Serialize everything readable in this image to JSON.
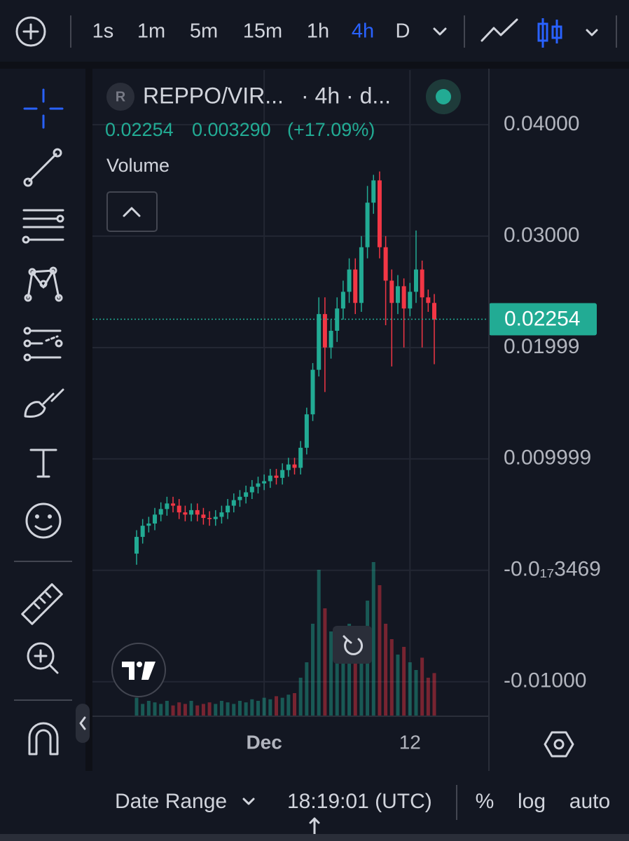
{
  "toolbar": {
    "intervals": [
      "1s",
      "1m",
      "5m",
      "15m",
      "1h",
      "4h",
      "D"
    ],
    "active_interval": "4h"
  },
  "legend": {
    "symbol_icon": "R",
    "symbol": "REPPO/VIR...",
    "interval": "· 4h · d...",
    "change": "0.003290",
    "change_pct": "(+17.09%)"
  },
  "chart_data": {
    "type": "candlestick",
    "categories": [
      null,
      null,
      null,
      null,
      null,
      null,
      null,
      null,
      null,
      null,
      null,
      null,
      null,
      null,
      null,
      null,
      null,
      null,
      null,
      null,
      null,
      "Dec",
      null,
      null,
      null,
      null,
      null,
      null,
      null,
      null,
      null,
      null,
      null,
      null,
      null,
      null,
      null,
      null,
      null,
      null,
      null,
      null,
      null,
      null,
      null,
      "12",
      null,
      null,
      null,
      null
    ],
    "open": [
      0.0015,
      0.003,
      0.004,
      0.0042,
      0.005,
      0.0055,
      0.006,
      0.0058,
      0.0052,
      0.005,
      0.0054,
      0.005,
      0.0047,
      0.0046,
      0.0048,
      0.0052,
      0.0058,
      0.0063,
      0.0066,
      0.007,
      0.0075,
      0.0078,
      0.008,
      0.0085,
      0.0083,
      0.009,
      0.0095,
      0.0092,
      0.011,
      0.014,
      0.018,
      0.023,
      0.02,
      0.0215,
      0.0235,
      0.025,
      0.027,
      0.024,
      0.029,
      0.033,
      0.035,
      0.029,
      0.026,
      0.024,
      0.0255,
      0.0235,
      0.025,
      0.027,
      0.0245,
      0.024
    ],
    "high": [
      0.0036,
      0.0046,
      0.0048,
      0.0056,
      0.0061,
      0.0066,
      0.0066,
      0.0064,
      0.0058,
      0.006,
      0.006,
      0.0056,
      0.0053,
      0.0054,
      0.0058,
      0.0064,
      0.0069,
      0.0072,
      0.0076,
      0.0081,
      0.0084,
      0.0086,
      0.0091,
      0.0091,
      0.0096,
      0.0101,
      0.0101,
      0.0116,
      0.0146,
      0.0186,
      0.0245,
      0.0245,
      0.0225,
      0.0245,
      0.026,
      0.028,
      0.028,
      0.03,
      0.0345,
      0.0355,
      0.0358,
      0.03,
      0.027,
      0.0265,
      0.0262,
      0.0258,
      0.0305,
      0.0278,
      0.0252,
      0.0248
    ],
    "low": [
      0.0005,
      0.0024,
      0.0034,
      0.0036,
      0.0044,
      0.0049,
      0.0052,
      0.0046,
      0.0044,
      0.0044,
      0.0044,
      0.0041,
      0.004,
      0.004,
      0.0042,
      0.0046,
      0.0052,
      0.0057,
      0.006,
      0.0064,
      0.0069,
      0.0072,
      0.0074,
      0.0077,
      0.0077,
      0.0084,
      0.0086,
      0.0086,
      0.0104,
      0.0134,
      0.0174,
      0.016,
      0.019,
      0.0205,
      0.0225,
      0.024,
      0.023,
      0.0232,
      0.028,
      0.032,
      0.028,
      0.022,
      0.0183,
      0.023,
      0.02,
      0.0228,
      0.024,
      0.02,
      0.0232,
      0.0185
    ],
    "close": [
      0.003,
      0.004,
      0.0042,
      0.005,
      0.0055,
      0.006,
      0.0058,
      0.0052,
      0.005,
      0.0054,
      0.005,
      0.0047,
      0.0046,
      0.0048,
      0.0052,
      0.0058,
      0.0063,
      0.0066,
      0.007,
      0.0075,
      0.0078,
      0.008,
      0.0085,
      0.0083,
      0.009,
      0.0095,
      0.0092,
      0.011,
      0.014,
      0.018,
      0.023,
      0.02,
      0.0215,
      0.0235,
      0.025,
      0.027,
      0.024,
      0.029,
      0.033,
      0.035,
      0.029,
      0.026,
      0.024,
      0.0255,
      0.0235,
      0.025,
      0.027,
      0.0245,
      0.024,
      0.0225
    ],
    "volume": {
      "name": "Volume",
      "values": [
        12,
        8,
        10,
        9,
        8,
        10,
        7,
        9,
        8,
        10,
        7,
        8,
        9,
        8,
        10,
        9,
        8,
        10,
        9,
        11,
        10,
        12,
        11,
        13,
        12,
        14,
        15,
        25,
        35,
        60,
        95,
        70,
        55,
        45,
        50,
        60,
        40,
        55,
        75,
        100,
        85,
        60,
        50,
        40,
        45,
        35,
        30,
        38,
        25,
        28
      ]
    },
    "up_color": "#22ab94",
    "down_color": "#f23645",
    "last_price": 0.02254,
    "ylim": [
      -0.0131,
      0.0449
    ],
    "yticks": [
      {
        "value": 0.04,
        "label": "0.04000"
      },
      {
        "value": 0.03,
        "label": "0.03000"
      },
      0.01999,
      0.009999,
      {
        "value": -3.469e-18,
        "label": "-0.0₁₇3469"
      },
      {
        "value": -0.01,
        "label": "-0.01000"
      }
    ],
    "grid": true
  },
  "bottom_bar": {
    "date_range": "Date Range",
    "time": "18:19:01 (UTC)",
    "buttons": [
      "%",
      "log",
      "auto"
    ]
  }
}
